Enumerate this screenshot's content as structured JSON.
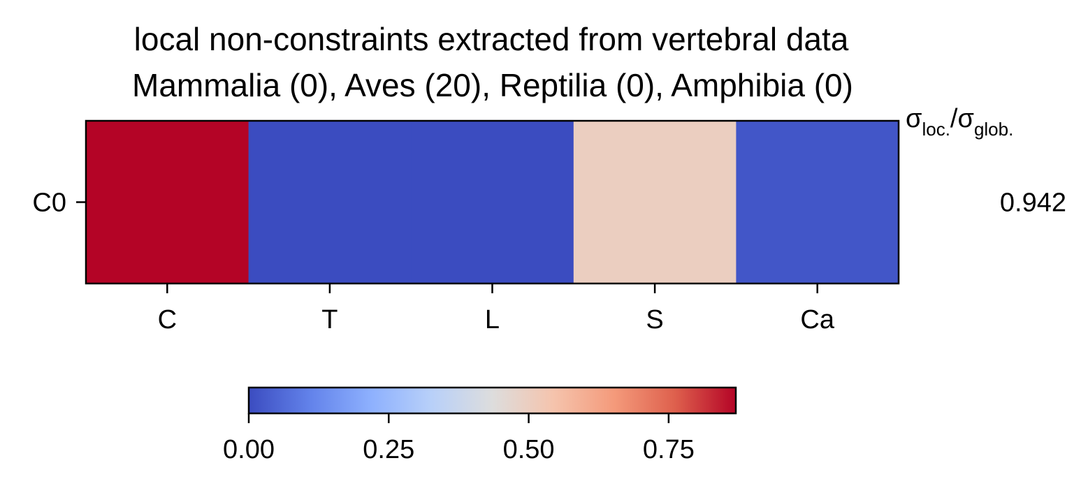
{
  "chart_data": {
    "type": "heatmap",
    "title": "local non-constraints extracted from vertebral data",
    "subtitle": "Mammalia (0), Aves (20), Reptilia (0), Amphibia (0)",
    "rows": [
      "C0"
    ],
    "columns": [
      "C",
      "T",
      "L",
      "S",
      "Ca"
    ],
    "values": [
      [
        0.87,
        0.0,
        0.0,
        0.5,
        0.02
      ]
    ],
    "colormap": "coolwarm",
    "colorbar": {
      "min": 0.0,
      "max": 0.87,
      "ticks": [
        0.0,
        0.25,
        0.5,
        0.75
      ],
      "tick_labels": [
        "0.00",
        "0.25",
        "0.50",
        "0.75"
      ],
      "orientation": "horizontal",
      "placement": "bottom"
    },
    "ratio_header": {
      "base": "σ",
      "sub_loc": "loc.",
      "sep": "/σ",
      "sub_glob": "glob."
    },
    "row_ratios": [
      "0.942"
    ]
  }
}
